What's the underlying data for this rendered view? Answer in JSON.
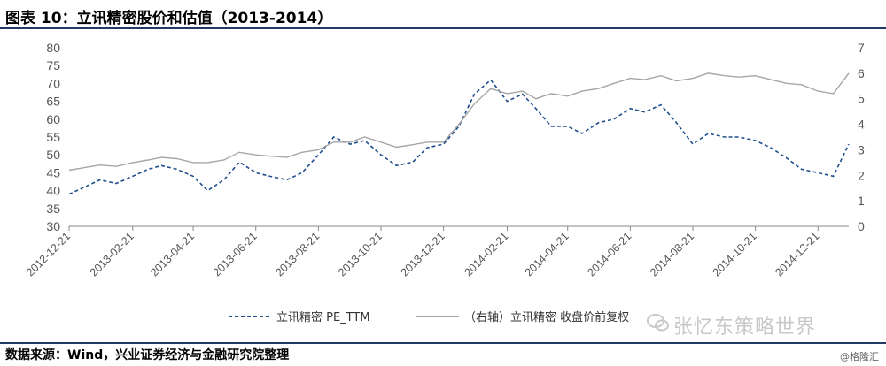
{
  "header": {
    "title": "图表 10：立讯精密股价和估值（2013-2014）"
  },
  "footer": {
    "source": "数据来源：Wind，兴业证券经济与金融研究院整理",
    "watermark_small": "@格隆汇",
    "watermark_big": "张忆东策略世界"
  },
  "chart_data": {
    "type": "line",
    "title": "",
    "xlabel": "",
    "ylabel": "",
    "y_left": {
      "ylim": [
        30,
        80
      ],
      "ticks": [
        30,
        35,
        40,
        45,
        50,
        55,
        60,
        65,
        70,
        75,
        80
      ]
    },
    "y_right": {
      "ylim": [
        0,
        7
      ],
      "ticks": [
        0,
        1,
        2,
        3,
        4,
        5,
        6,
        7
      ]
    },
    "x_tick_labels": [
      "2012-12-21",
      "2013-02-21",
      "2013-04-21",
      "2013-06-21",
      "2013-08-21",
      "2013-10-21",
      "2013-12-21",
      "2014-02-21",
      "2014-04-21",
      "2014-06-21",
      "2014-08-21",
      "2014-10-21",
      "2014-12-21"
    ],
    "grid": false,
    "legend_position": "bottom",
    "series": [
      {
        "name": "立讯精密 PE_TTM",
        "axis": "left",
        "style": "dashed",
        "color": "#1f4e8c",
        "x": [
          "2012-12-21",
          "2013-01-05",
          "2013-01-20",
          "2013-02-05",
          "2013-02-21",
          "2013-03-08",
          "2013-03-21",
          "2013-04-05",
          "2013-04-21",
          "2013-05-05",
          "2013-05-21",
          "2013-06-05",
          "2013-06-21",
          "2013-07-05",
          "2013-07-21",
          "2013-08-05",
          "2013-08-21",
          "2013-09-05",
          "2013-09-21",
          "2013-10-05",
          "2013-10-21",
          "2013-11-05",
          "2013-11-21",
          "2013-12-05",
          "2013-12-21",
          "2014-01-05",
          "2014-01-20",
          "2014-02-05",
          "2014-02-21",
          "2014-03-08",
          "2014-03-21",
          "2014-04-05",
          "2014-04-21",
          "2014-05-05",
          "2014-05-21",
          "2014-06-05",
          "2014-06-21",
          "2014-07-05",
          "2014-07-21",
          "2014-08-05",
          "2014-08-21",
          "2014-09-05",
          "2014-09-21",
          "2014-10-05",
          "2014-10-21",
          "2014-11-05",
          "2014-11-21",
          "2014-12-05",
          "2014-12-21",
          "2015-01-05",
          "2015-01-20"
        ],
        "values": [
          39,
          41,
          43,
          42,
          44,
          46,
          47,
          46,
          44,
          40,
          43,
          48,
          45,
          44,
          43,
          45,
          50,
          55,
          53,
          54,
          50,
          47,
          48,
          52,
          53,
          58,
          67,
          71,
          65,
          67,
          63,
          58,
          58,
          56,
          59,
          60,
          63,
          62,
          64,
          59,
          53,
          56,
          55,
          55,
          54,
          52,
          49,
          46,
          45,
          44,
          53
        ]
      },
      {
        "name": "（右轴）立讯精密 收盘价前复权",
        "axis": "right",
        "style": "solid",
        "color": "#a6a6a6",
        "x": [
          "2012-12-21",
          "2013-01-05",
          "2013-01-20",
          "2013-02-05",
          "2013-02-21",
          "2013-03-08",
          "2013-03-21",
          "2013-04-05",
          "2013-04-21",
          "2013-05-05",
          "2013-05-21",
          "2013-06-05",
          "2013-06-21",
          "2013-07-05",
          "2013-07-21",
          "2013-08-05",
          "2013-08-21",
          "2013-09-05",
          "2013-09-21",
          "2013-10-05",
          "2013-10-21",
          "2013-11-05",
          "2013-11-21",
          "2013-12-05",
          "2013-12-21",
          "2014-01-05",
          "2014-01-20",
          "2014-02-05",
          "2014-02-21",
          "2014-03-08",
          "2014-03-21",
          "2014-04-05",
          "2014-04-21",
          "2014-05-05",
          "2014-05-21",
          "2014-06-05",
          "2014-06-21",
          "2014-07-05",
          "2014-07-21",
          "2014-08-05",
          "2014-08-21",
          "2014-09-05",
          "2014-09-21",
          "2014-10-05",
          "2014-10-21",
          "2014-11-05",
          "2014-11-21",
          "2014-12-05",
          "2014-12-21",
          "2015-01-05",
          "2015-01-20"
        ],
        "values": [
          2.2,
          2.3,
          2.4,
          2.35,
          2.5,
          2.6,
          2.7,
          2.65,
          2.5,
          2.5,
          2.6,
          2.9,
          2.8,
          2.75,
          2.7,
          2.9,
          3.0,
          3.3,
          3.3,
          3.5,
          3.3,
          3.1,
          3.2,
          3.3,
          3.3,
          4.0,
          4.8,
          5.4,
          5.2,
          5.3,
          5.0,
          5.2,
          5.1,
          5.3,
          5.4,
          5.6,
          5.8,
          5.75,
          5.9,
          5.7,
          5.8,
          6.0,
          5.9,
          5.85,
          5.9,
          5.75,
          5.6,
          5.55,
          5.3,
          5.2,
          6.0
        ]
      }
    ]
  }
}
